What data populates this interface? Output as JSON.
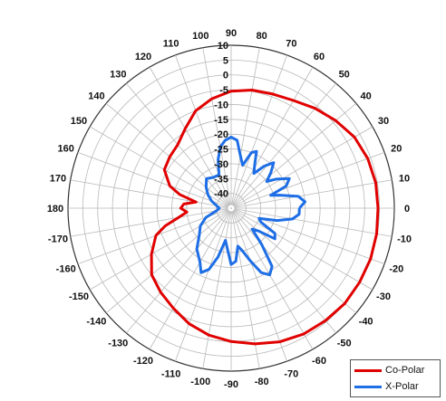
{
  "chart_data": {
    "type": "polar-line",
    "angle_unit": "degrees",
    "angle_ticks": [
      0,
      10,
      20,
      30,
      40,
      50,
      60,
      70,
      80,
      90,
      100,
      110,
      120,
      130,
      140,
      150,
      160,
      170,
      180,
      -170,
      -160,
      -150,
      -140,
      -130,
      -120,
      -110,
      -100,
      -90,
      -80,
      -70,
      -60,
      -50,
      -40,
      -30,
      -20,
      -10
    ],
    "radial_ticks": [
      10,
      5,
      0,
      -5,
      -10,
      -15,
      -20,
      -25,
      -30,
      -35,
      -40
    ],
    "rlim": [
      -45,
      10
    ],
    "grid": true,
    "legend_position": "bottom-right",
    "series": [
      {
        "name": "Co-Polar",
        "color": "#e00000",
        "points": [
          [
            0,
            4.5
          ],
          [
            10,
            4.5
          ],
          [
            20,
            4
          ],
          [
            30,
            3
          ],
          [
            40,
            1
          ],
          [
            50,
            -1
          ],
          [
            60,
            -3
          ],
          [
            70,
            -4
          ],
          [
            80,
            -4.5
          ],
          [
            90,
            -5.5
          ],
          [
            100,
            -7.5
          ],
          [
            110,
            -10
          ],
          [
            120,
            -14
          ],
          [
            130,
            -17
          ],
          [
            140,
            -18
          ],
          [
            150,
            -19
          ],
          [
            160,
            -23
          ],
          [
            165,
            -27
          ],
          [
            170,
            -33
          ],
          [
            175,
            -29
          ],
          [
            180,
            -28
          ],
          [
            -175,
            -30
          ],
          [
            -170,
            -27
          ],
          [
            -165,
            -22
          ],
          [
            -160,
            -18
          ],
          [
            -150,
            -14
          ],
          [
            -140,
            -10
          ],
          [
            -130,
            -8
          ],
          [
            -120,
            -6
          ],
          [
            -110,
            -3.5
          ],
          [
            -100,
            -1.5
          ],
          [
            -90,
            0
          ],
          [
            -80,
            1.5
          ],
          [
            -70,
            3
          ],
          [
            -60,
            4
          ],
          [
            -50,
            4.5
          ],
          [
            -40,
            5
          ],
          [
            -30,
            5
          ],
          [
            -20,
            5
          ],
          [
            -10,
            4.8
          ],
          [
            0,
            4.5
          ]
        ]
      },
      {
        "name": "X-Polar",
        "color": "#1e6ee6",
        "points": [
          [
            0,
            -22
          ],
          [
            5,
            -20
          ],
          [
            10,
            -22
          ],
          [
            15,
            -28
          ],
          [
            18,
            -31
          ],
          [
            22,
            -25
          ],
          [
            27,
            -23
          ],
          [
            33,
            -27
          ],
          [
            37,
            -30
          ],
          [
            42,
            -27
          ],
          [
            47,
            -24
          ],
          [
            52,
            -27
          ],
          [
            57,
            -31
          ],
          [
            62,
            -28
          ],
          [
            66,
            -24
          ],
          [
            70,
            -25
          ],
          [
            75,
            -30
          ],
          [
            80,
            -27
          ],
          [
            85,
            -22
          ],
          [
            90,
            -21
          ],
          [
            95,
            -22
          ],
          [
            100,
            -24
          ],
          [
            105,
            -28
          ],
          [
            110,
            -33
          ],
          [
            120,
            -33
          ],
          [
            130,
            -32
          ],
          [
            140,
            -34
          ],
          [
            150,
            -36
          ],
          [
            160,
            -38
          ],
          [
            170,
            -40
          ],
          [
            180,
            -41
          ],
          [
            -170,
            -40
          ],
          [
            -160,
            -36
          ],
          [
            -150,
            -33
          ],
          [
            -140,
            -31
          ],
          [
            -130,
            -27
          ],
          [
            -120,
            -24
          ],
          [
            -115,
            -21
          ],
          [
            -110,
            -23
          ],
          [
            -105,
            -28
          ],
          [
            -100,
            -34
          ],
          [
            -95,
            -31
          ],
          [
            -90,
            -26
          ],
          [
            -85,
            -27
          ],
          [
            -80,
            -32
          ],
          [
            -75,
            -30
          ],
          [
            -70,
            -26
          ],
          [
            -65,
            -21
          ],
          [
            -60,
            -19
          ],
          [
            -55,
            -21
          ],
          [
            -50,
            -29
          ],
          [
            -45,
            -35
          ],
          [
            -40,
            -33
          ],
          [
            -35,
            -27
          ],
          [
            -30,
            -28
          ],
          [
            -25,
            -34
          ],
          [
            -20,
            -35
          ],
          [
            -15,
            -29
          ],
          [
            -10,
            -24
          ],
          [
            -5,
            -22
          ],
          [
            0,
            -22
          ]
        ]
      }
    ]
  }
}
